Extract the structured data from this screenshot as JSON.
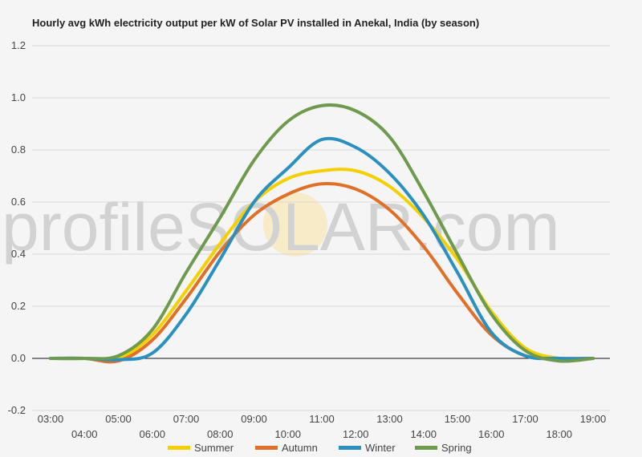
{
  "chart_data": {
    "type": "line",
    "title": "Hourly avg kWh electricity output per kW of Solar PV installed in Anekal, India (by season)",
    "xlabel": "",
    "ylabel": "",
    "ylim": [
      -0.2,
      1.2
    ],
    "yticks": [
      "-0.2",
      "0.0",
      "0.2",
      "0.4",
      "0.6",
      "0.8",
      "1.0",
      "1.2"
    ],
    "ytick_values": [
      -0.2,
      0,
      0.2,
      0.4,
      0.6,
      0.8,
      1.0,
      1.2
    ],
    "x": [
      "03:00",
      "04:00",
      "05:00",
      "06:00",
      "07:00",
      "08:00",
      "09:00",
      "10:00",
      "11:00",
      "12:00",
      "13:00",
      "14:00",
      "15:00",
      "16:00",
      "17:00",
      "18:00",
      "19:00"
    ],
    "grid": true,
    "legend_position": "bottom",
    "series": [
      {
        "name": "Summer",
        "color": "#f5d000",
        "values": [
          0,
          0,
          0,
          0.09,
          0.26,
          0.44,
          0.6,
          0.69,
          0.72,
          0.72,
          0.66,
          0.54,
          0.38,
          0.18,
          0.04,
          0,
          0
        ]
      },
      {
        "name": "Autumn",
        "color": "#e07028",
        "values": [
          0,
          0,
          -0.01,
          0.07,
          0.23,
          0.41,
          0.55,
          0.63,
          0.67,
          0.65,
          0.57,
          0.43,
          0.25,
          0.09,
          0.01,
          0,
          0
        ]
      },
      {
        "name": "Winter",
        "color": "#2a90c0",
        "values": [
          0,
          0,
          -0.005,
          0.02,
          0.17,
          0.38,
          0.6,
          0.73,
          0.84,
          0.81,
          0.71,
          0.55,
          0.33,
          0.1,
          0.01,
          0,
          0
        ]
      },
      {
        "name": "Spring",
        "color": "#6d9a4c",
        "values": [
          0,
          0,
          0.01,
          0.11,
          0.33,
          0.54,
          0.76,
          0.91,
          0.97,
          0.95,
          0.85,
          0.64,
          0.4,
          0.17,
          0.03,
          -0.01,
          0
        ]
      }
    ]
  },
  "watermark": {
    "before": "profile",
    "brand": "SOLAR",
    "after": ".com"
  }
}
